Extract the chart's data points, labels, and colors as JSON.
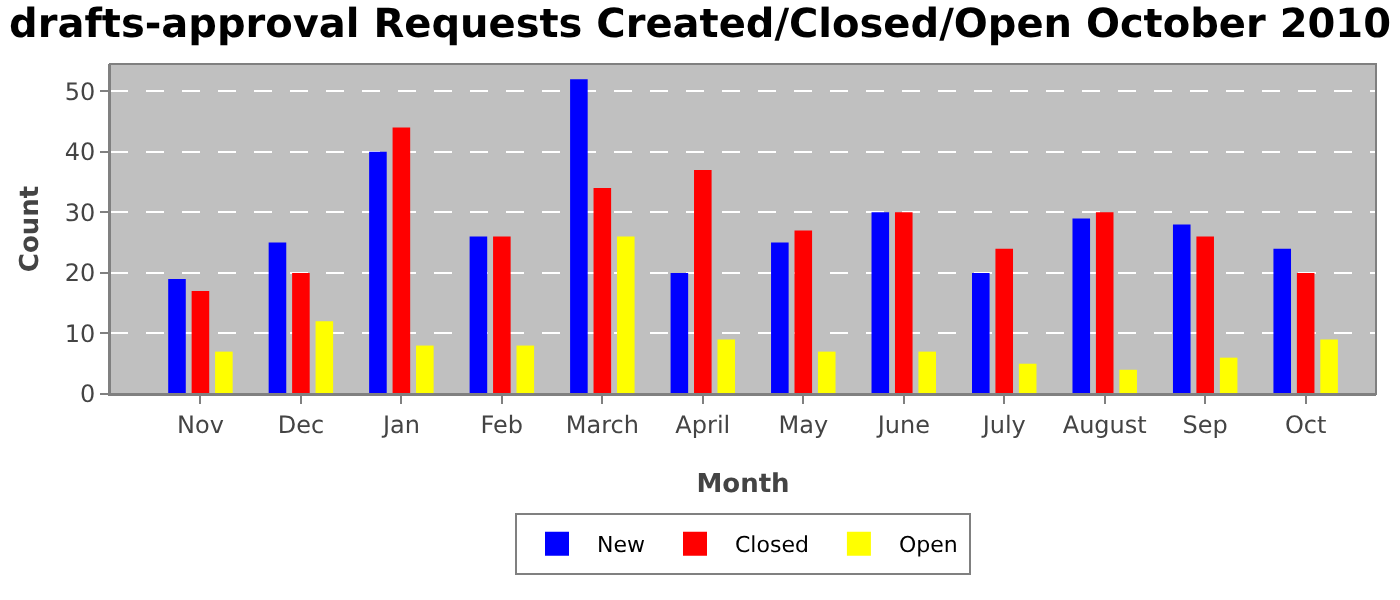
{
  "chart_data": {
    "type": "bar",
    "title": "drafts-approval Requests Created/Closed/Open October 2010",
    "xlabel": "Month",
    "ylabel": "Count",
    "categories": [
      "Nov",
      "Dec",
      "Jan",
      "Feb",
      "March",
      "April",
      "May",
      "June",
      "July",
      "August",
      "Sep",
      "Oct"
    ],
    "series": [
      {
        "name": "New",
        "color": "#0000ff",
        "values": [
          19,
          25,
          40,
          26,
          52,
          20,
          25,
          30,
          20,
          29,
          28,
          24
        ]
      },
      {
        "name": "Closed",
        "color": "#ff0000",
        "values": [
          17,
          20,
          44,
          26,
          34,
          37,
          27,
          30,
          24,
          30,
          26,
          20
        ]
      },
      {
        "name": "Open",
        "color": "#ffff00",
        "values": [
          7,
          12,
          8,
          8,
          26,
          9,
          7,
          7,
          5,
          4,
          6,
          9
        ]
      }
    ],
    "ylim": [
      0,
      54.5
    ],
    "yticks": [
      0,
      10,
      20,
      30,
      40,
      50
    ],
    "grid": "y",
    "legend": "bottom"
  }
}
